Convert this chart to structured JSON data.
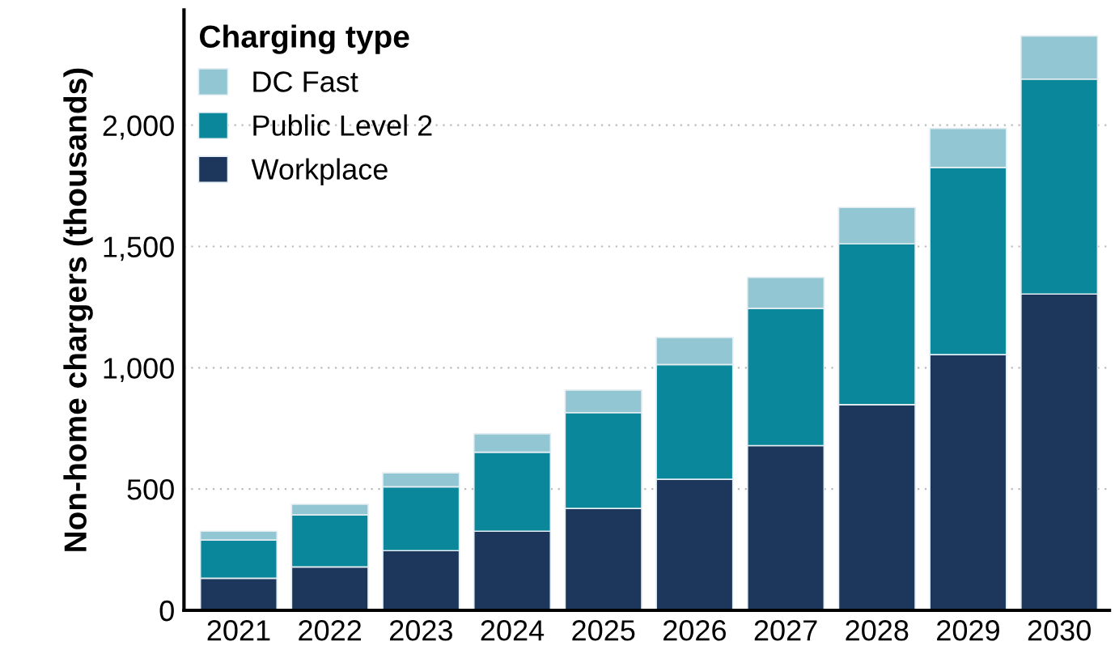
{
  "chart_data": {
    "type": "bar",
    "stacked": true,
    "ylabel": "Non-home chargers (thousands)",
    "legend_title": "Charging type",
    "legend": "top left",
    "grid": "y",
    "categories": [
      "2021",
      "2022",
      "2023",
      "2024",
      "2025",
      "2026",
      "2027",
      "2028",
      "2029",
      "2030"
    ],
    "series": [
      {
        "name": "Workplace",
        "color": "#1c365c",
        "values": [
          132,
          179,
          246,
          326,
          420,
          540,
          679,
          848,
          1054,
          1304
        ]
      },
      {
        "name": "Public Level 2",
        "color": "#0a879b",
        "values": [
          158,
          214,
          263,
          326,
          395,
          473,
          566,
          663,
          772,
          886
        ]
      },
      {
        "name": "DC Fast",
        "color": "#91c6d2",
        "values": [
          36,
          44,
          58,
          76,
          93,
          112,
          128,
          150,
          161,
          178
        ]
      }
    ],
    "ylim": [
      0,
      2475
    ],
    "yticks": [
      0,
      {
        "value": 500,
        "label": "500"
      },
      {
        "value": 1000,
        "label": "1,000"
      },
      {
        "value": 1500,
        "label": "1,500"
      },
      {
        "value": 2000,
        "label": "2,000"
      }
    ]
  }
}
